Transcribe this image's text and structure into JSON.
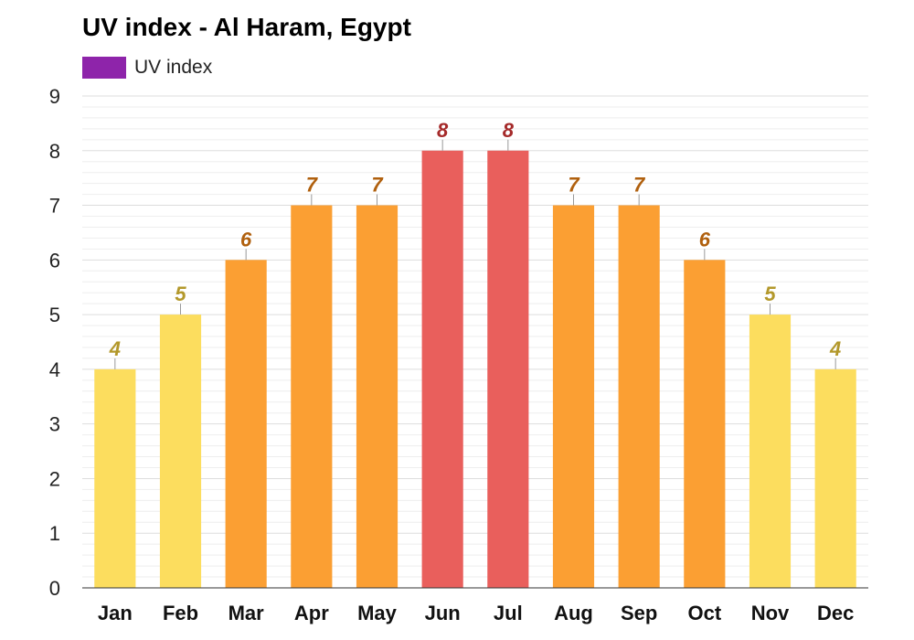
{
  "chart_data": {
    "type": "bar",
    "title": "UV index - Al Haram, Egypt",
    "legend": [
      {
        "name": "UV index",
        "color": "#8e24aa"
      }
    ],
    "legend_position": "top-left",
    "categories": [
      "Jan",
      "Feb",
      "Mar",
      "Apr",
      "May",
      "Jun",
      "Jul",
      "Aug",
      "Sep",
      "Oct",
      "Nov",
      "Dec"
    ],
    "series": [
      {
        "name": "UV index",
        "values": [
          4,
          5,
          6,
          7,
          7,
          8,
          8,
          7,
          7,
          6,
          5,
          4
        ]
      }
    ],
    "ylim": [
      0,
      9
    ],
    "yticks": [
      0,
      1,
      2,
      3,
      4,
      5,
      6,
      7,
      8,
      9
    ],
    "grid": true,
    "color_scale": {
      "moderate": {
        "max": 5,
        "bar": "#fcdd5e",
        "label": "#b3982b"
      },
      "high": {
        "max": 7,
        "bar": "#fb9f33",
        "label": "#b0600e"
      },
      "very_high": {
        "max": 10,
        "bar": "#e95f5c",
        "label": "#a52a2a"
      }
    },
    "gridline_color": "#dddddd",
    "minor_gridline_color": "#eeeeee",
    "axis_color": "#333333"
  }
}
